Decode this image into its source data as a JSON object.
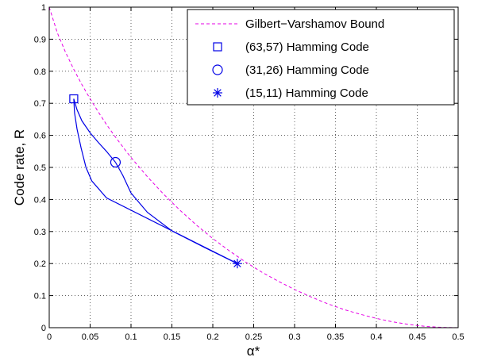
{
  "chart_data": {
    "type": "line",
    "title": "",
    "xlabel": "α*",
    "ylabel": "Code rate, R",
    "xlim": [
      0,
      0.5
    ],
    "ylim": [
      0,
      1
    ],
    "x_ticks": [
      "0",
      "0.05",
      "0.1",
      "0.15",
      "0.2",
      "0.25",
      "0.3",
      "0.35",
      "0.4",
      "0.45",
      "0.5"
    ],
    "y_ticks": [
      "0",
      "0.1",
      "0.2",
      "0.3",
      "0.4",
      "0.5",
      "0.6",
      "0.7",
      "0.8",
      "0.9",
      "1"
    ],
    "grid": true,
    "legend_position": "top-right",
    "series": [
      {
        "name": "Gilbert−Varshamov Bound",
        "style": "dashed",
        "color": "#e600e6",
        "points": [
          [
            0,
            1
          ],
          [
            0.01,
            0.919
          ],
          [
            0.02,
            0.859
          ],
          [
            0.03,
            0.806
          ],
          [
            0.04,
            0.758
          ],
          [
            0.05,
            0.714
          ],
          [
            0.06,
            0.673
          ],
          [
            0.07,
            0.634
          ],
          [
            0.08,
            0.598
          ],
          [
            0.09,
            0.564
          ],
          [
            0.1,
            0.531
          ],
          [
            0.12,
            0.471
          ],
          [
            0.14,
            0.416
          ],
          [
            0.16,
            0.366
          ],
          [
            0.18,
            0.32
          ],
          [
            0.2,
            0.278
          ],
          [
            0.22,
            0.24
          ],
          [
            0.24,
            0.205
          ],
          [
            0.26,
            0.173
          ],
          [
            0.28,
            0.145
          ],
          [
            0.3,
            0.119
          ],
          [
            0.32,
            0.096
          ],
          [
            0.34,
            0.075
          ],
          [
            0.36,
            0.057
          ],
          [
            0.38,
            0.042
          ],
          [
            0.4,
            0.029
          ],
          [
            0.42,
            0.018
          ],
          [
            0.44,
            0.01
          ],
          [
            0.46,
            0.004
          ],
          [
            0.48,
            0.001
          ],
          [
            0.5,
            0
          ]
        ]
      },
      {
        "name": "(63,57) Hamming Code",
        "marker": "square",
        "color": "#0000e6",
        "points": [
          [
            0.03,
            0.714
          ]
        ]
      },
      {
        "name": "(31,26) Hamming Code",
        "marker": "circle",
        "color": "#0000e6",
        "points": [
          [
            0.081,
            0.516
          ]
        ]
      },
      {
        "name": "(15,11) Hamming Code",
        "marker": "asterisk",
        "color": "#0000e6",
        "points": [
          [
            0.23,
            0.2
          ]
        ]
      }
    ],
    "curves": [
      {
        "color": "#0000e6",
        "points": [
          [
            0.03,
            0.714
          ],
          [
            0.031,
            0.67
          ],
          [
            0.034,
            0.62
          ],
          [
            0.039,
            0.56
          ],
          [
            0.045,
            0.5
          ],
          [
            0.052,
            0.458
          ],
          [
            0.07,
            0.405
          ],
          [
            0.23,
            0.2
          ]
        ]
      },
      {
        "color": "#0000e6",
        "points": [
          [
            0.03,
            0.714
          ],
          [
            0.034,
            0.68
          ],
          [
            0.04,
            0.645
          ],
          [
            0.05,
            0.608
          ],
          [
            0.06,
            0.578
          ],
          [
            0.07,
            0.55
          ],
          [
            0.081,
            0.516
          ]
        ]
      },
      {
        "color": "#0000e6",
        "points": [
          [
            0.081,
            0.516
          ],
          [
            0.09,
            0.475
          ],
          [
            0.1,
            0.42
          ],
          [
            0.12,
            0.36
          ],
          [
            0.15,
            0.302
          ],
          [
            0.19,
            0.25
          ],
          [
            0.23,
            0.2
          ]
        ]
      }
    ]
  }
}
